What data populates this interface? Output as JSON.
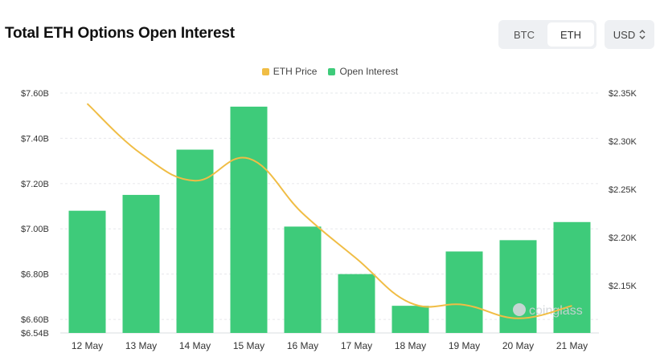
{
  "title": "Total ETH Options Open Interest",
  "toggle": {
    "options": [
      "BTC",
      "ETH"
    ],
    "selected": "ETH"
  },
  "currency": {
    "value": "USD"
  },
  "watermark": "coinglass",
  "colors": {
    "bar": "#3ecb7a",
    "line": "#f0bd45",
    "grid": "#e6e8eb"
  },
  "chart_data": {
    "type": "bar",
    "categories": [
      "12 May",
      "13 May",
      "14 May",
      "15 May",
      "16 May",
      "17 May",
      "18 May",
      "19 May",
      "20 May",
      "21 May"
    ],
    "legend": {
      "placement": "top-center",
      "entries": [
        "ETH Price",
        "Open Interest"
      ]
    },
    "series": [
      {
        "name": "Open Interest",
        "type": "bar",
        "axis": "left",
        "values": [
          7.08,
          7.15,
          7.35,
          7.54,
          7.01,
          6.8,
          6.66,
          6.9,
          6.95,
          7.03
        ]
      },
      {
        "name": "ETH Price",
        "type": "line",
        "axis": "right",
        "values": [
          2339,
          2287,
          2259,
          2282,
          2225,
          2178,
          2132,
          2130,
          2116,
          2129
        ]
      }
    ],
    "y_left": {
      "ylim": [
        6.54,
        7.6
      ],
      "ticks": [
        7.6,
        7.4,
        7.2,
        7.0,
        6.8,
        6.6,
        6.54
      ],
      "tick_labels": [
        "$7.60B",
        "$7.40B",
        "$7.20B",
        "$7.00B",
        "$6.80B",
        "$6.60B",
        "$6.54B"
      ]
    },
    "y_right": {
      "ylim": [
        2100,
        2350
      ],
      "ticks": [
        2350,
        2300,
        2250,
        2200,
        2150
      ],
      "tick_labels": [
        "$2.35K",
        "$2.30K",
        "$2.25K",
        "$2.20K",
        "$2.15K"
      ]
    },
    "grid": true
  }
}
